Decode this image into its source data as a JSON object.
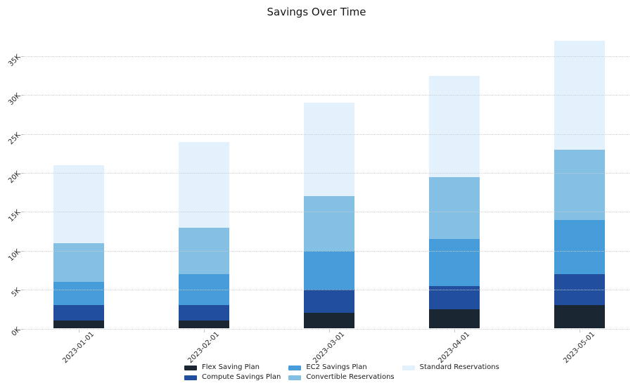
{
  "chart_data": {
    "type": "bar",
    "stacked": true,
    "title": "Savings Over Time",
    "xlabel": "",
    "ylabel": "",
    "categories": [
      "2023-01-01",
      "2023-02-01",
      "2023-03-01",
      "2023-04-01",
      "2023-05-01"
    ],
    "series": [
      {
        "name": "Flex Saving Plan",
        "color": "#1b2633",
        "values": [
          1000,
          1000,
          2000,
          2500,
          3000
        ]
      },
      {
        "name": "Compute Savings Plan",
        "color": "#224f9d",
        "values": [
          2000,
          2000,
          3000,
          3000,
          4000
        ]
      },
      {
        "name": "EC2 Savings Plan",
        "color": "#479dda",
        "values": [
          3000,
          4000,
          5000,
          6000,
          7000
        ]
      },
      {
        "name": "Convertible Reservations",
        "color": "#83c0e4",
        "values": [
          5000,
          6000,
          7000,
          8000,
          9000
        ]
      },
      {
        "name": "Standard Reservations",
        "color": "#e3f1fc",
        "values": [
          10000,
          11000,
          12000,
          13000,
          14000
        ]
      }
    ],
    "stack_totals": [
      21000,
      24000,
      29000,
      32500,
      37000
    ],
    "ytick_labels": [
      "0K",
      "5K",
      "10K",
      "15K",
      "20K",
      "25K",
      "30K",
      "35K"
    ],
    "ytick_values": [
      0,
      5000,
      10000,
      15000,
      20000,
      25000,
      30000,
      35000
    ],
    "ylim": [
      0,
      37500
    ],
    "grid": "horizontal-dotted",
    "legend_position": "bottom",
    "background_color": "#ffffff"
  }
}
